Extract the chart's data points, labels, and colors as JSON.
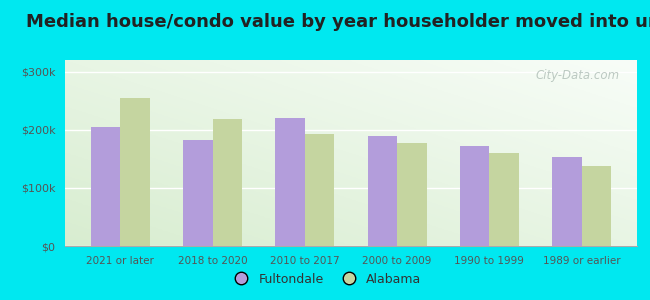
{
  "title": "Median house/condo value by year householder moved into unit",
  "categories": [
    "2021 or later",
    "2018 to 2020",
    "2010 to 2017",
    "2000 to 2009",
    "1990 to 1999",
    "1989 or earlier"
  ],
  "fultondale": [
    205000,
    183000,
    220000,
    190000,
    172000,
    153000
  ],
  "alabama": [
    255000,
    218000,
    193000,
    178000,
    160000,
    138000
  ],
  "fultondale_color": "#b39ddb",
  "alabama_color": "#c5d5a0",
  "background_outer": "#00e8f0",
  "background_inner_green": "#d8edd0",
  "background_inner_white": "#f5faf5",
  "yticks": [
    0,
    100000,
    200000,
    300000
  ],
  "ytick_labels": [
    "$0",
    "$100k",
    "$200k",
    "$300k"
  ],
  "ylim": [
    0,
    320000
  ],
  "legend_fultondale": "Fultondale",
  "legend_alabama": "Alabama",
  "title_fontsize": 13,
  "watermark": "City-Data.com",
  "bar_width": 0.32
}
